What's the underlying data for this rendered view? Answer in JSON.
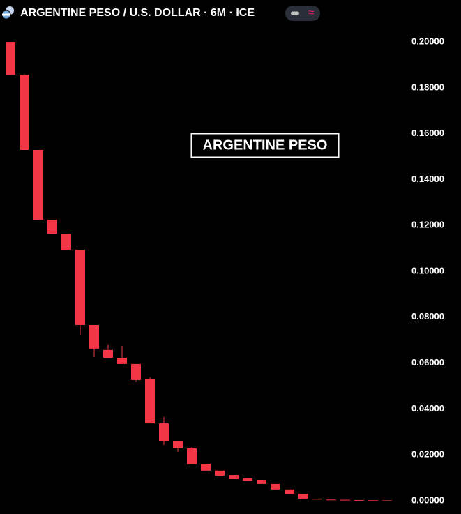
{
  "chart_data": {
    "type": "candlestick",
    "title": "ARGENTINE PESO / U.S. DOLLAR · 6M · ICE",
    "annotation": "ARGENTINE PESO",
    "color": "#f23645",
    "open": [
      0.2,
      0.1857,
      0.1529,
      0.1225,
      0.1164,
      0.1094,
      0.0766,
      0.0657,
      0.0623,
      0.0596,
      0.0529,
      0.0337,
      0.0261,
      0.0228,
      0.0161,
      0.0131,
      0.0112,
      0.0097,
      0.0091,
      0.0073,
      0.0049,
      0.003,
      0.0009,
      0.0005,
      0.0004,
      0.0003,
      0.0002,
      0.00015
    ],
    "high": [
      0.2,
      0.186,
      0.1529,
      0.1225,
      0.1164,
      0.1094,
      0.0766,
      0.0681,
      0.0675,
      0.0596,
      0.0538,
      0.0365,
      0.0261,
      0.0234,
      0.0161,
      0.0131,
      0.0112,
      0.0097,
      0.0091,
      0.0073,
      0.0049,
      0.003,
      0.0009,
      0.0005,
      0.0004,
      0.0003,
      0.0002,
      0.00015
    ],
    "low": [
      0.1857,
      0.1529,
      0.1225,
      0.1164,
      0.1094,
      0.0723,
      0.0626,
      0.0623,
      0.0596,
      0.0517,
      0.0337,
      0.0243,
      0.0213,
      0.0158,
      0.0131,
      0.0109,
      0.0094,
      0.0088,
      0.0073,
      0.0049,
      0.003,
      0.0009,
      0.0005,
      0.0004,
      0.0003,
      0.0002,
      0.0001,
      0.0001
    ],
    "close": [
      0.1857,
      0.1529,
      0.1225,
      0.1164,
      0.1094,
      0.0766,
      0.0663,
      0.0623,
      0.0596,
      0.0526,
      0.0337,
      0.0261,
      0.0228,
      0.0158,
      0.0131,
      0.0109,
      0.0094,
      0.0088,
      0.0073,
      0.0049,
      0.003,
      0.0009,
      0.0005,
      0.0004,
      0.0003,
      0.0002,
      0.0001,
      0.0001
    ],
    "ylim": [
      -0.0058,
      0.2061
    ],
    "yticks": [
      {
        "value": 0,
        "label": "0.00000"
      },
      {
        "value": 0.02,
        "label": "0.02000"
      },
      {
        "value": 0.04,
        "label": "0.04000"
      },
      {
        "value": 0.06,
        "label": "0.06000"
      },
      {
        "value": 0.08,
        "label": "0.08000"
      },
      {
        "value": 0.1,
        "label": "0.10000"
      },
      {
        "value": 0.12,
        "label": "0.12000"
      },
      {
        "value": 0.14,
        "label": "0.14000"
      },
      {
        "value": 0.16,
        "label": "0.16000"
      },
      {
        "value": 0.18,
        "label": "0.18000"
      },
      {
        "value": 0.2,
        "label": "0.20000"
      }
    ]
  }
}
